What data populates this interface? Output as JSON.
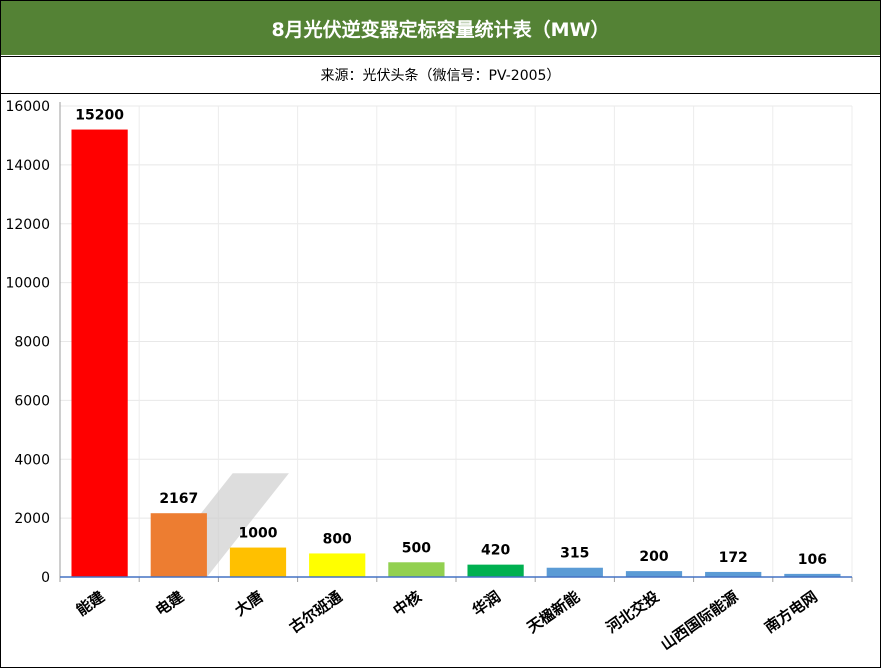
{
  "chart_data": {
    "type": "bar",
    "title": "8月光伏逆变器定标容量统计表（MW）",
    "subtitle": "来源：光伏头条（微信号：PV-2005）",
    "categories": [
      "能建",
      "电建",
      "大唐",
      "古尔班通",
      "中核",
      "华润",
      "天楹新能",
      "河北交投",
      "山西国际能源",
      "南方电网"
    ],
    "values": [
      15200,
      2167,
      1000,
      800,
      500,
      420,
      315,
      200,
      172,
      106
    ],
    "colors": [
      "#ff0000",
      "#ed7d31",
      "#ffc000",
      "#ffff00",
      "#92d050",
      "#00b050",
      "#5b9bd5",
      "#5b9bd5",
      "#5b9bd5",
      "#5b9bd5"
    ],
    "ylim": [
      0,
      16000
    ],
    "yticks": [
      0,
      2000,
      4000,
      6000,
      8000,
      10000,
      12000,
      14000,
      16000
    ],
    "xlabel": "",
    "ylabel": "",
    "grid": true,
    "legend": "none"
  }
}
